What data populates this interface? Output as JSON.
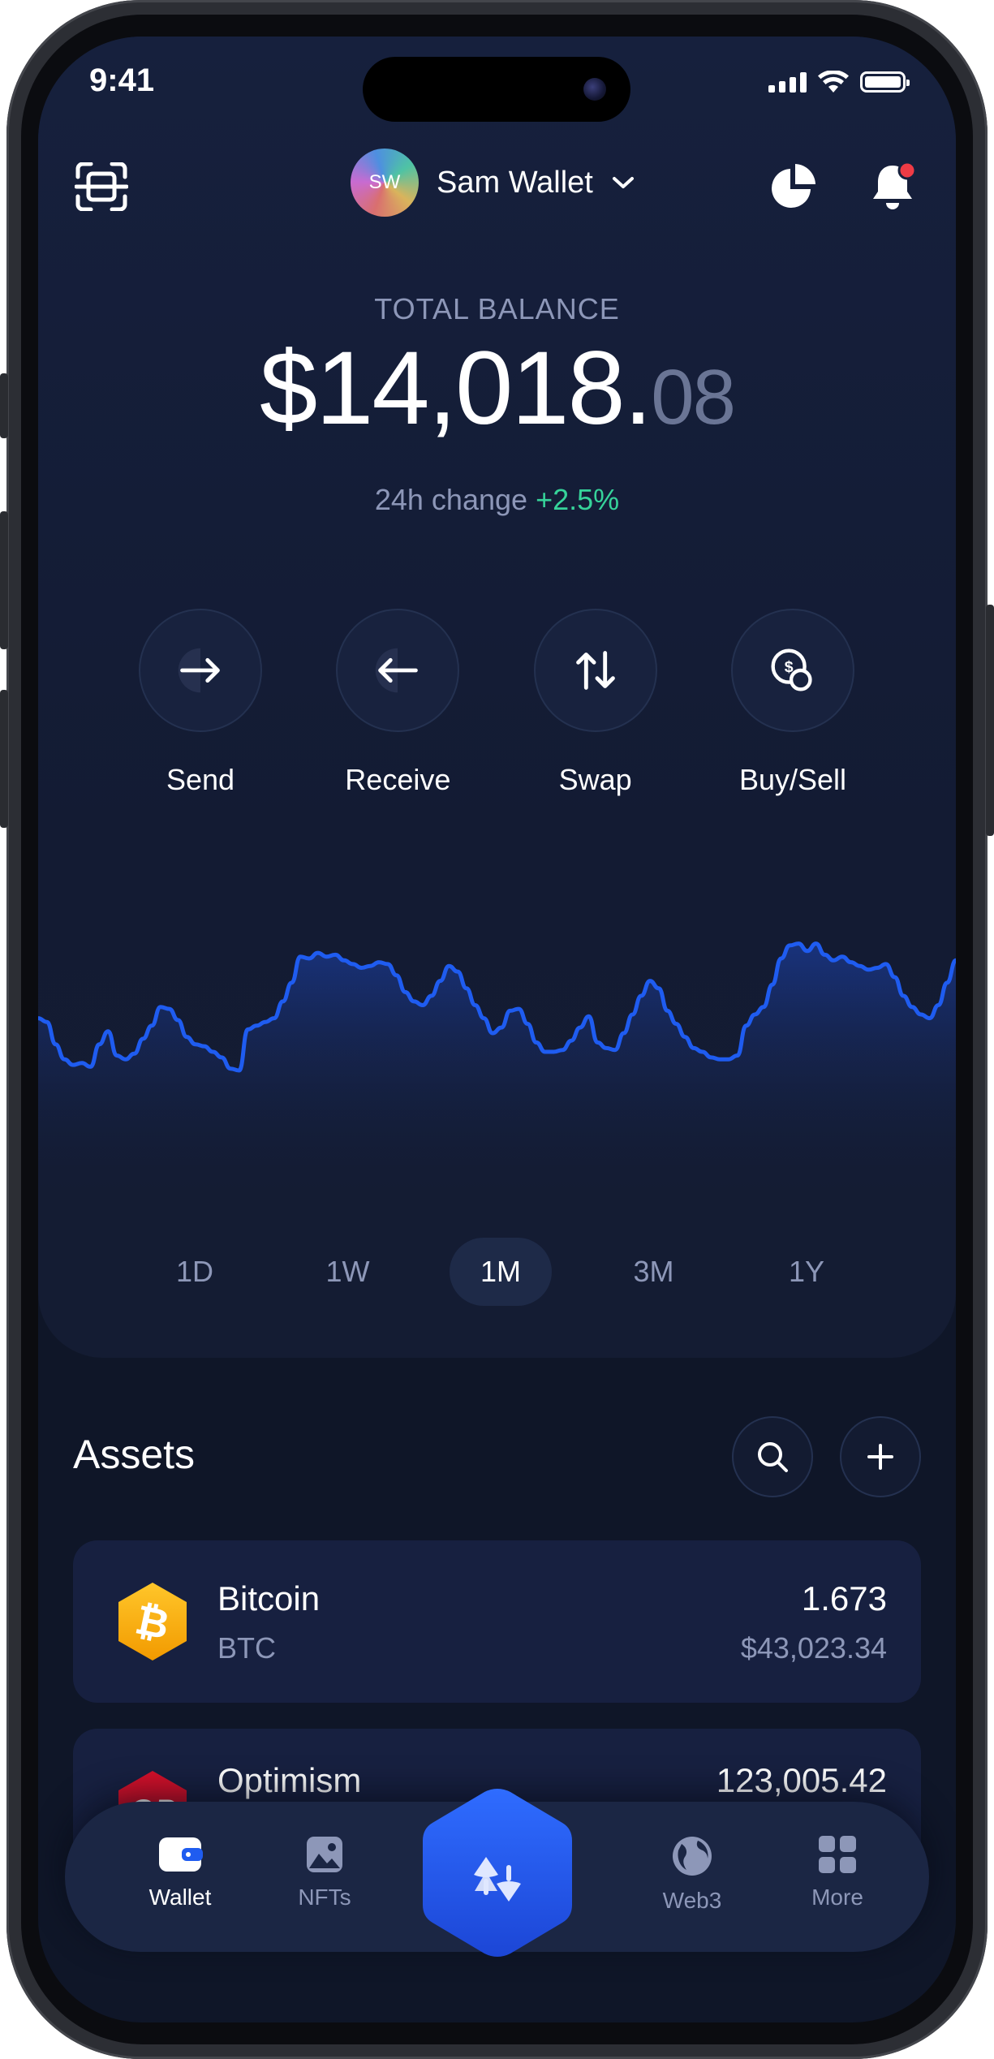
{
  "status": {
    "time": "9:41"
  },
  "header": {
    "account_initials": "SW",
    "account_name": "Sam Wallet"
  },
  "balance": {
    "label": "TOTAL BALANCE",
    "whole": "$14,018.",
    "decimals": "08",
    "change_label": "24h change",
    "change_value": "+2.5%"
  },
  "actions": [
    {
      "label": "Send",
      "icon": "arrow-right-icon"
    },
    {
      "label": "Receive",
      "icon": "arrow-left-icon"
    },
    {
      "label": "Swap",
      "icon": "swap-arrows-icon"
    },
    {
      "label": "Buy/Sell",
      "icon": "coins-dollar-icon"
    }
  ],
  "ranges": [
    "1D",
    "1W",
    "1M",
    "3M",
    "1Y"
  ],
  "selected_range": "1M",
  "chart_data": {
    "type": "line",
    "values": [
      48,
      46,
      34,
      26,
      23,
      24,
      22,
      34,
      41,
      28,
      26,
      29,
      37,
      44,
      54,
      53,
      47,
      38,
      34,
      33,
      30,
      27,
      21,
      20,
      42,
      44,
      46,
      48,
      57,
      67,
      81,
      80,
      83,
      81,
      82,
      79,
      77,
      75,
      76,
      78,
      77,
      71,
      62,
      57,
      55,
      60,
      68,
      76,
      73,
      64,
      55,
      48,
      40,
      43,
      52,
      53,
      45,
      35,
      30,
      30,
      31,
      36,
      43,
      49,
      35,
      32,
      31,
      40,
      50,
      60,
      68,
      64,
      52,
      45,
      38,
      32,
      30,
      27,
      26,
      26,
      28,
      44,
      50,
      54,
      66,
      80,
      87,
      88,
      84,
      88,
      82,
      79,
      81,
      78,
      76,
      74,
      75,
      77,
      70,
      60,
      54,
      50,
      48,
      55,
      67,
      79
    ],
    "grid": false,
    "legend": "none"
  },
  "assets": {
    "title": "Assets",
    "items": [
      {
        "name": "Bitcoin",
        "symbol": "BTC",
        "amount": "1.673",
        "value": "$43,023.34",
        "color": "#f7a600",
        "icon": "bitcoin-icon"
      },
      {
        "name": "Optimism",
        "symbol": "OP",
        "amount": "123,005.42",
        "value": "",
        "color": "#ff0420",
        "icon": "optimism-icon"
      }
    ]
  },
  "tabbar": {
    "items": [
      {
        "label": "Wallet",
        "icon": "wallet-icon",
        "active": true
      },
      {
        "label": "NFTs",
        "icon": "image-icon",
        "active": false
      },
      {
        "label": "Web3",
        "icon": "globe-icon",
        "active": false
      },
      {
        "label": "More",
        "icon": "grid-icon",
        "active": false
      }
    ]
  },
  "colors": {
    "background": "#0f1628",
    "accent": "#1f5cf0",
    "positive": "#36d39a",
    "muted_text": "#8d97b8"
  }
}
